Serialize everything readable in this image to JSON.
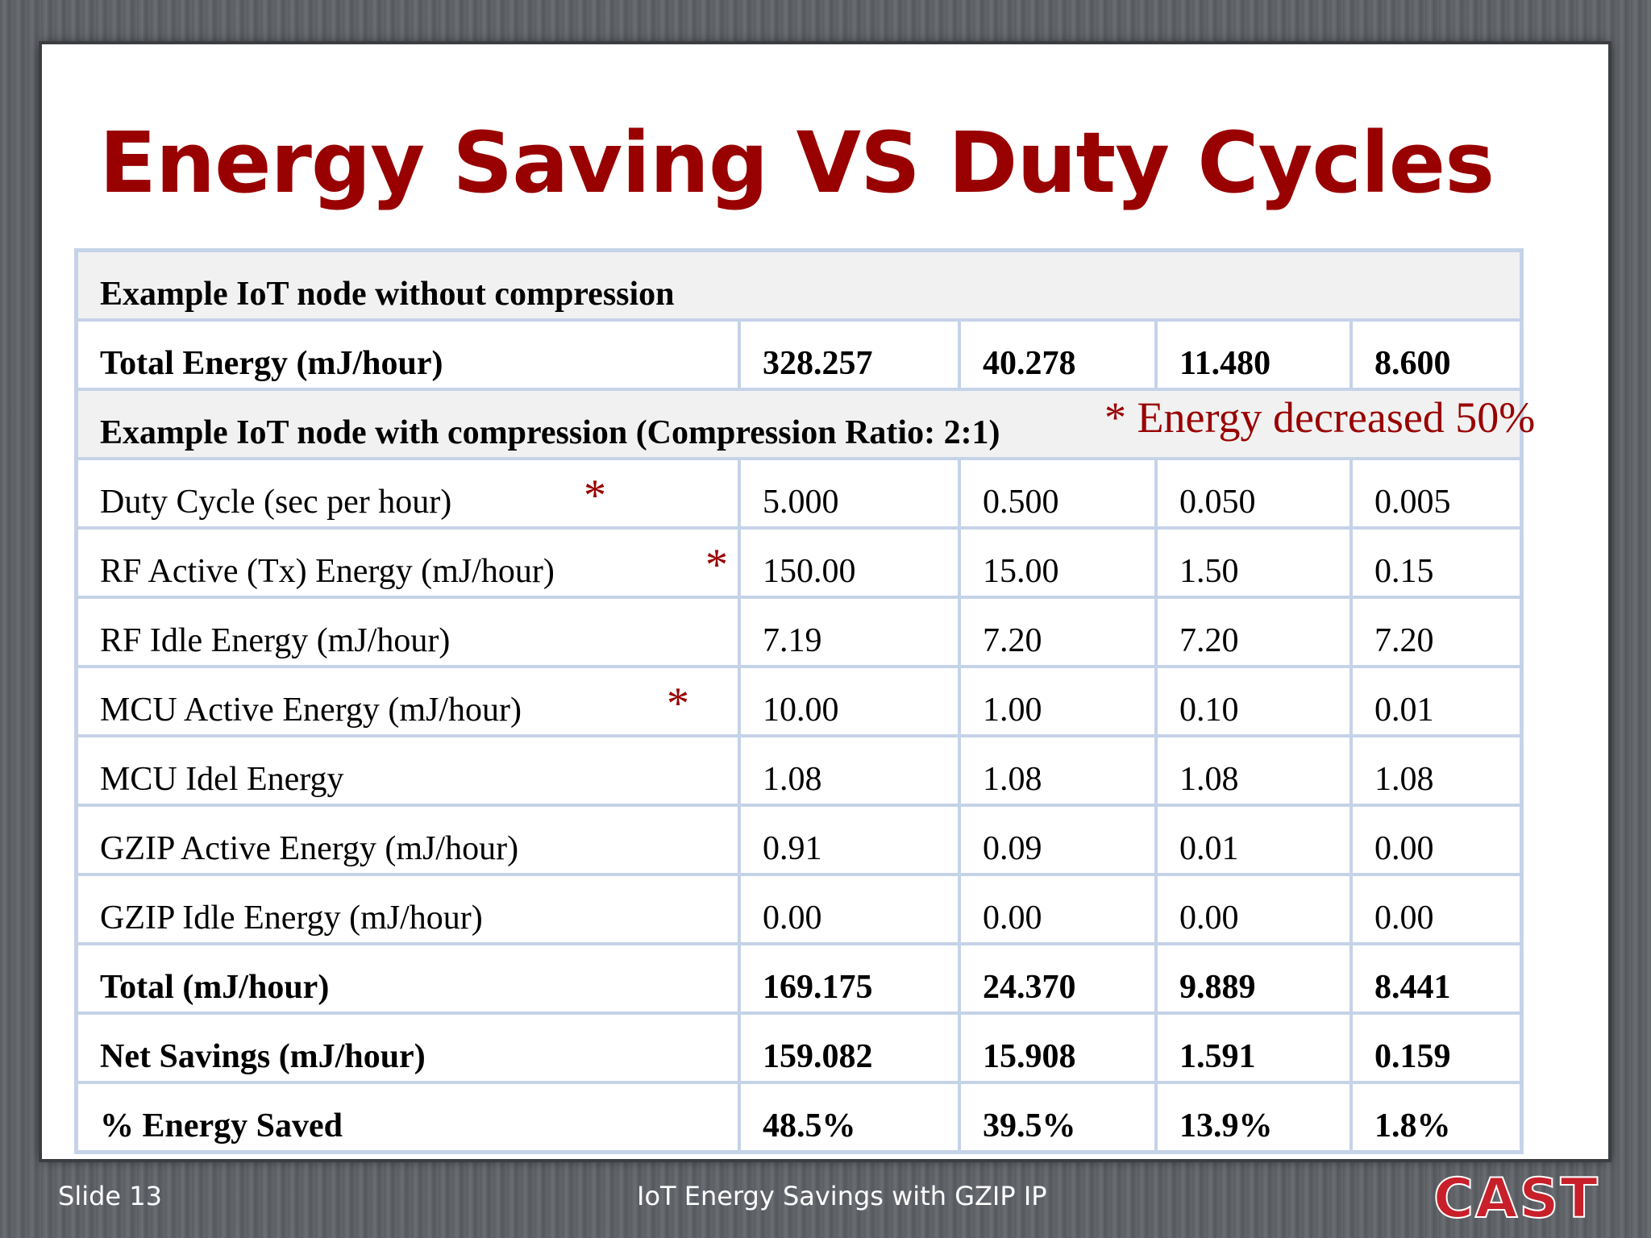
{
  "title": "Energy Saving VS Duty Cycles",
  "note": "* Energy decreased 50%",
  "table": {
    "section1_header": "Example IoT node without compression",
    "total_energy": {
      "label": "Total Energy (mJ/hour)",
      "values": [
        "328.257",
        "40.278",
        "11.480",
        "8.600"
      ]
    },
    "section2_header": "Example IoT node with compression (Compression Ratio: 2:1)",
    "rows": [
      {
        "label": "Duty Cycle (sec per hour)",
        "values": [
          "5.000",
          "0.500",
          "0.050",
          "0.005"
        ],
        "star": "*"
      },
      {
        "label": "RF Active (Tx) Energy (mJ/hour)",
        "values": [
          "150.00",
          "15.00",
          "1.50",
          "0.15"
        ],
        "star": "*"
      },
      {
        "label": "RF Idle Energy (mJ/hour)",
        "values": [
          "7.19",
          "7.20",
          "7.20",
          "7.20"
        ]
      },
      {
        "label": "MCU Active Energy (mJ/hour)",
        "values": [
          "10.00",
          "1.00",
          "0.10",
          "0.01"
        ],
        "star": "*"
      },
      {
        "label": "MCU Idel Energy",
        "values": [
          "1.08",
          "1.08",
          "1.08",
          "1.08"
        ]
      },
      {
        "label": "GZIP Active Energy (mJ/hour)",
        "values": [
          "0.91",
          "0.09",
          "0.01",
          "0.00"
        ]
      },
      {
        "label": "GZIP Idle Energy (mJ/hour)",
        "values": [
          "0.00",
          "0.00",
          "0.00",
          "0.00"
        ]
      }
    ],
    "totals": [
      {
        "label": "Total (mJ/hour)",
        "values": [
          "169.175",
          "24.370",
          "9.889",
          "8.441"
        ]
      },
      {
        "label": "Net Savings (mJ/hour)",
        "values": [
          "159.082",
          "15.908",
          "1.591",
          "0.159"
        ]
      },
      {
        "label": "% Energy Saved",
        "values": [
          "48.5%",
          "39.5%",
          "13.9%",
          "1.8%"
        ]
      }
    ]
  },
  "footer": {
    "slide_number": "Slide 13",
    "title": "IoT Energy Savings with GZIP IP",
    "logo_text": "CAST"
  },
  "colors": {
    "accent": "#990000",
    "grid": "#c5d3e8"
  }
}
